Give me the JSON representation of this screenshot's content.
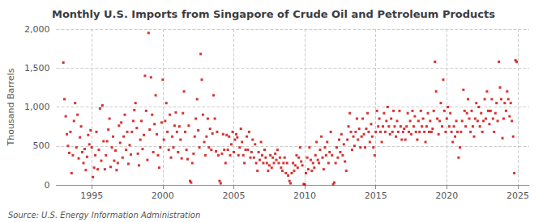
{
  "chart_data": {
    "type": "scatter",
    "title": "Monthly U.S. Imports from Singapore of Crude Oil and Petroleum Products",
    "ylabel": "Thousand Barrels",
    "annotations": [
      "Source: U.S. Energy Information Administration"
    ],
    "color": "#cc0000",
    "marker": "square",
    "grid": true,
    "xlim": [
      1992.5,
      2025.8
    ],
    "xticks": [
      1995,
      2000,
      2005,
      2010,
      2015,
      2020,
      2025
    ],
    "ylim": [
      0,
      2000
    ],
    "yticks": [
      0,
      500,
      {
        "value": 1000,
        "label": "1,000"
      },
      {
        "value": 1500,
        "label": "1,500"
      },
      {
        "value": 2000,
        "label": "2,000"
      }
    ],
    "x": [
      1993.0,
      1993.08,
      1993.17,
      1993.25,
      1993.33,
      1993.42,
      1993.5,
      1993.58,
      1993.67,
      1993.75,
      1993.83,
      1993.92,
      1994.0,
      1994.08,
      1994.17,
      1994.25,
      1994.33,
      1994.42,
      1994.5,
      1994.58,
      1994.67,
      1994.75,
      1994.83,
      1994.92,
      1995.0,
      1995.08,
      1995.17,
      1995.25,
      1995.33,
      1995.42,
      1995.5,
      1995.58,
      1995.67,
      1995.75,
      1995.83,
      1995.92,
      1996.0,
      1996.08,
      1996.17,
      1996.25,
      1996.33,
      1996.42,
      1996.5,
      1996.58,
      1996.67,
      1996.75,
      1996.83,
      1996.92,
      1997.0,
      1997.08,
      1997.17,
      1997.25,
      1997.33,
      1997.42,
      1997.5,
      1997.58,
      1997.67,
      1997.75,
      1997.83,
      1997.92,
      1998.0,
      1998.08,
      1998.17,
      1998.25,
      1998.33,
      1998.42,
      1998.5,
      1998.58,
      1998.67,
      1998.75,
      1998.83,
      1998.92,
      1999.0,
      1999.08,
      1999.17,
      1999.25,
      1999.33,
      1999.42,
      1999.5,
      1999.58,
      1999.67,
      1999.75,
      1999.83,
      1999.92,
      2000.0,
      2000.08,
      2000.17,
      2000.25,
      2000.33,
      2000.42,
      2000.5,
      2000.58,
      2000.67,
      2000.75,
      2000.83,
      2000.92,
      2001.0,
      2001.08,
      2001.17,
      2001.25,
      2001.33,
      2001.42,
      2001.5,
      2001.58,
      2001.67,
      2001.75,
      2001.83,
      2001.92,
      2002.0,
      2002.08,
      2002.17,
      2002.25,
      2002.33,
      2002.42,
      2002.5,
      2002.58,
      2002.67,
      2002.75,
      2002.83,
      2002.92,
      2003.0,
      2003.08,
      2003.17,
      2003.25,
      2003.33,
      2003.42,
      2003.5,
      2003.58,
      2003.67,
      2003.75,
      2003.83,
      2003.92,
      2004.0,
      2004.08,
      2004.17,
      2004.25,
      2004.33,
      2004.42,
      2004.5,
      2004.58,
      2004.67,
      2004.75,
      2004.83,
      2004.92,
      2005.0,
      2005.08,
      2005.17,
      2005.25,
      2005.33,
      2005.42,
      2005.5,
      2005.58,
      2005.67,
      2005.75,
      2005.83,
      2005.92,
      2006.0,
      2006.08,
      2006.17,
      2006.25,
      2006.33,
      2006.42,
      2006.5,
      2006.58,
      2006.67,
      2006.75,
      2006.83,
      2006.92,
      2007.0,
      2007.08,
      2007.17,
      2007.25,
      2007.33,
      2007.42,
      2007.5,
      2007.58,
      2007.67,
      2007.75,
      2007.83,
      2007.92,
      2008.0,
      2008.08,
      2008.17,
      2008.25,
      2008.33,
      2008.42,
      2008.5,
      2008.58,
      2008.67,
      2008.75,
      2008.83,
      2008.92,
      2009.0,
      2009.08,
      2009.17,
      2009.25,
      2009.33,
      2009.42,
      2009.5,
      2009.58,
      2009.67,
      2009.75,
      2009.83,
      2009.92,
      2010.0,
      2010.08,
      2010.17,
      2010.25,
      2010.33,
      2010.42,
      2010.5,
      2010.58,
      2010.67,
      2010.75,
      2010.83,
      2010.92,
      2011.0,
      2011.08,
      2011.17,
      2011.25,
      2011.33,
      2011.42,
      2011.5,
      2011.58,
      2011.67,
      2011.75,
      2011.83,
      2011.92,
      2012.0,
      2012.08,
      2012.17,
      2012.25,
      2012.33,
      2012.42,
      2012.5,
      2012.58,
      2012.67,
      2012.75,
      2012.83,
      2012.92,
      2013.0,
      2013.08,
      2013.17,
      2013.25,
      2013.33,
      2013.42,
      2013.5,
      2013.58,
      2013.67,
      2013.75,
      2013.83,
      2013.92,
      2014.0,
      2014.08,
      2014.17,
      2014.25,
      2014.33,
      2014.42,
      2014.5,
      2014.58,
      2014.67,
      2014.75,
      2014.83,
      2014.92,
      2015.0,
      2015.08,
      2015.17,
      2015.25,
      2015.33,
      2015.42,
      2015.5,
      2015.58,
      2015.67,
      2015.75,
      2015.83,
      2015.92,
      2016.0,
      2016.08,
      2016.17,
      2016.25,
      2016.33,
      2016.42,
      2016.5,
      2016.58,
      2016.67,
      2016.75,
      2016.83,
      2016.92,
      2017.0,
      2017.08,
      2017.17,
      2017.25,
      2017.33,
      2017.42,
      2017.5,
      2017.58,
      2017.67,
      2017.75,
      2017.83,
      2017.92,
      2018.0,
      2018.08,
      2018.17,
      2018.25,
      2018.33,
      2018.42,
      2018.5,
      2018.58,
      2018.67,
      2018.75,
      2018.83,
      2018.92,
      2019.0,
      2019.08,
      2019.17,
      2019.25,
      2019.33,
      2019.42,
      2019.5,
      2019.58,
      2019.67,
      2019.75,
      2019.83,
      2019.92,
      2020.0,
      2020.08,
      2020.17,
      2020.25,
      2020.33,
      2020.42,
      2020.5,
      2020.58,
      2020.67,
      2020.75,
      2020.83,
      2020.92,
      2021.0,
      2021.08,
      2021.17,
      2021.25,
      2021.33,
      2021.42,
      2021.5,
      2021.58,
      2021.67,
      2021.75,
      2021.83,
      2021.92,
      2022.0,
      2022.08,
      2022.17,
      2022.25,
      2022.33,
      2022.42,
      2022.5,
      2022.58,
      2022.67,
      2022.75,
      2022.83,
      2022.92,
      2023.0,
      2023.08,
      2023.17,
      2023.25,
      2023.33,
      2023.42,
      2023.5,
      2023.58,
      2023.67,
      2023.75,
      2023.83,
      2023.92,
      2024.0,
      2024.08,
      2024.17,
      2024.25,
      2024.33,
      2024.42,
      2024.5,
      2024.58,
      2024.67,
      2024.75,
      2024.83,
      2024.92
    ],
    "values": [
      1570,
      1100,
      880,
      650,
      500,
      410,
      680,
      150,
      380,
      820,
      1050,
      480,
      900,
      340,
      610,
      750,
      420,
      280,
      460,
      190,
      360,
      640,
      520,
      700,
      480,
      100,
      220,
      380,
      680,
      200,
      450,
      980,
      310,
      1020,
      560,
      200,
      380,
      560,
      710,
      850,
      230,
      480,
      620,
      310,
      440,
      190,
      280,
      760,
      540,
      800,
      350,
      620,
      900,
      450,
      680,
      270,
      510,
      390,
      680,
      820,
      960,
      1050,
      730,
      400,
      250,
      580,
      820,
      460,
      640,
      1400,
      950,
      320,
      1950,
      710,
      1380,
      900,
      420,
      780,
      1150,
      650,
      380,
      220,
      480,
      800,
      1350,
      580,
      820,
      1050,
      680,
      450,
      900,
      350,
      620,
      480,
      760,
      930,
      680,
      420,
      750,
      580,
      340,
      920,
      1200,
      680,
      450,
      330,
      760,
      50,
      30,
      280,
      400,
      620,
      850,
      1100,
      700,
      480,
      1680,
      1350,
      900,
      550,
      380,
      620,
      850,
      480,
      720,
      450,
      660,
      1150,
      850,
      430,
      680,
      380,
      50,
      20,
      400,
      650,
      450,
      280,
      640,
      450,
      620,
      380,
      520,
      680,
      420,
      580,
      650,
      610,
      380,
      480,
      720,
      550,
      380,
      280,
      450,
      620,
      450,
      680,
      350,
      420,
      580,
      350,
      520,
      280,
      180,
      420,
      320,
      550,
      380,
      280,
      450,
      350,
      280,
      180,
      250,
      380,
      220,
      350,
      280,
      400,
      320,
      450,
      280,
      350,
      220,
      180,
      280,
      350,
      150,
      280,
      120,
      50,
      20,
      150,
      280,
      180,
      250,
      380,
      220,
      350,
      480,
      300,
      250,
      10,
      5,
      150,
      350,
      200,
      480,
      320,
      180,
      280,
      220,
      380,
      550,
      320,
      280,
      450,
      620,
      350,
      200,
      480,
      380,
      550,
      280,
      420,
      680,
      380,
      5,
      30,
      280,
      480,
      350,
      580,
      420,
      650,
      380,
      520,
      300,
      180,
      580,
      750,
      920,
      680,
      450,
      620,
      500,
      680,
      850,
      580,
      720,
      480,
      620,
      850,
      650,
      480,
      720,
      920,
      680,
      550,
      780,
      620,
      480,
      380,
      680,
      950,
      750,
      850,
      680,
      550,
      750,
      920,
      680,
      820,
      1000,
      750,
      650,
      850,
      680,
      950,
      750,
      620,
      820,
      680,
      950,
      750,
      580,
      680,
      720,
      580,
      750,
      920,
      680,
      820,
      650,
      950,
      750,
      880,
      680,
      580,
      820,
      680,
      950,
      750,
      850,
      680,
      550,
      750,
      920,
      680,
      820,
      680,
      720,
      950,
      1580,
      1200,
      850,
      650,
      820,
      1050,
      750,
      1350,
      950,
      680,
      850,
      1000,
      750,
      920,
      680,
      550,
      750,
      620,
      820,
      680,
      350,
      480,
      680,
      820,
      1220,
      950,
      750,
      920,
      1100,
      850,
      680,
      950,
      750,
      620,
      850,
      1050,
      820,
      1000,
      750,
      920,
      680,
      820,
      1100,
      850,
      1200,
      950,
      780,
      950,
      1100,
      850,
      680,
      920,
      1050,
      820,
      1580,
      1250,
      1100,
      600,
      850,
      1050,
      950,
      1200,
      1100,
      880,
      1050,
      820,
      620,
      150,
      1600,
      1580
    ]
  }
}
